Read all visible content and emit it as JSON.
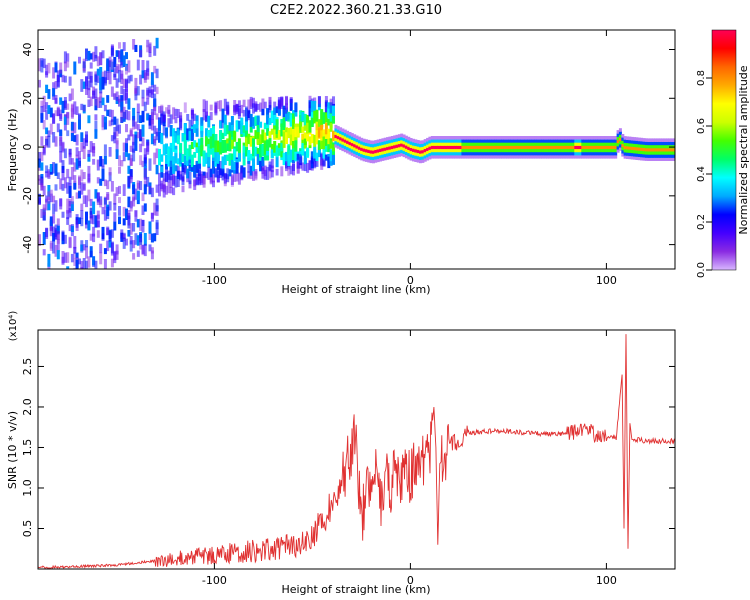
{
  "title": "C2E2.2022.360.21.33.G10",
  "chart_data": [
    {
      "type": "heatmap",
      "xlabel": "Height of straight line (km)",
      "ylabel": "Frequency (Hz)",
      "xlim": [
        -190,
        135
      ],
      "ylim": [
        -50,
        48
      ],
      "xticks": [
        -100,
        0,
        100
      ],
      "yticks": [
        -40,
        -20,
        0,
        20,
        40
      ],
      "colorbar": {
        "label": "Normalized spectral amplitude",
        "range": [
          0.0,
          1.0
        ],
        "ticks": [
          0.0,
          0.2,
          0.4,
          0.6,
          0.8
        ],
        "colors": [
          "#d8b8ff",
          "#8a2be2",
          "#4400ff",
          "#0000ff",
          "#00aaff",
          "#00ffff",
          "#00ff66",
          "#44ff00",
          "#ccff00",
          "#ffff00",
          "#ffaa00",
          "#ff6600",
          "#ff0000",
          "#ff0055"
        ]
      },
      "ridge": [
        [
          -190,
          -10
        ],
        [
          -170,
          -7
        ],
        [
          -150,
          -3
        ],
        [
          -130,
          -1
        ],
        [
          -110,
          0
        ],
        [
          -100,
          1
        ],
        [
          -90,
          2
        ],
        [
          -80,
          3
        ],
        [
          -70,
          4
        ],
        [
          -60,
          5
        ],
        [
          -50,
          6
        ],
        [
          -45,
          6.5
        ],
        [
          -40,
          5
        ],
        [
          -35,
          3
        ],
        [
          -30,
          1
        ],
        [
          -25,
          -1
        ],
        [
          -20,
          -2
        ],
        [
          -15,
          -1
        ],
        [
          -10,
          0
        ],
        [
          -5,
          1
        ],
        [
          0,
          -1
        ],
        [
          5,
          -2
        ],
        [
          10,
          0
        ],
        [
          20,
          0
        ],
        [
          40,
          0
        ],
        [
          60,
          0
        ],
        [
          80,
          0
        ],
        [
          100,
          0
        ],
        [
          104,
          0
        ],
        [
          106,
          4
        ],
        [
          108,
          0
        ],
        [
          120,
          -1
        ],
        [
          135,
          -1
        ]
      ]
    },
    {
      "type": "line",
      "xlabel": "Height of straight line (km)",
      "ylabel": "SNR (10 * v/v)",
      "yunit": "(x10⁴)",
      "xlim": [
        -190,
        135
      ],
      "ylim": [
        0,
        2.95
      ],
      "xticks": [
        -100,
        0,
        100
      ],
      "yticks": [
        0.5,
        1.0,
        1.5,
        2.0,
        2.5
      ],
      "series": [
        {
          "color": "#e03030",
          "x": [
            -190,
            -170,
            -150,
            -130,
            -110,
            -90,
            -70,
            -55,
            -50,
            -45,
            -40,
            -35,
            -32,
            -28,
            -25,
            -22,
            -20,
            -18,
            -15,
            -12,
            -10,
            -8,
            -5,
            -2,
            0,
            2,
            5,
            8,
            10,
            12,
            13,
            14,
            15,
            18,
            20,
            25,
            30,
            40,
            50,
            60,
            70,
            80,
            85,
            90,
            95,
            100,
            105,
            108,
            109,
            110,
            111,
            112,
            113,
            115,
            120,
            135
          ],
          "y": [
            0.02,
            0.03,
            0.05,
            0.1,
            0.15,
            0.2,
            0.25,
            0.3,
            0.45,
            0.6,
            0.8,
            1.1,
            1.3,
            1.65,
            0.6,
            1.0,
            0.9,
            1.3,
            0.8,
            1.2,
            0.9,
            1.3,
            1.0,
            1.2,
            1.1,
            1.3,
            1.25,
            1.4,
            1.5,
            2.0,
            1.5,
            0.3,
            1.3,
            1.4,
            1.5,
            1.6,
            1.68,
            1.7,
            1.7,
            1.68,
            1.66,
            1.68,
            1.7,
            1.72,
            1.65,
            1.64,
            1.62,
            2.4,
            0.5,
            2.9,
            0.25,
            1.8,
            1.6,
            1.6,
            1.58,
            1.58
          ]
        }
      ]
    }
  ]
}
